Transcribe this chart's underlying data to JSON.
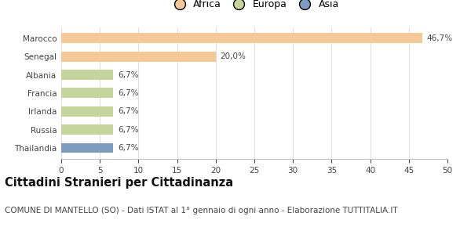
{
  "categories": [
    "Marocco",
    "Senegal",
    "Albania",
    "Francia",
    "Irlanda",
    "Russia",
    "Thailandia"
  ],
  "values": [
    46.7,
    20.0,
    6.7,
    6.7,
    6.7,
    6.7,
    6.7
  ],
  "labels": [
    "46,7%",
    "20,0%",
    "6,7%",
    "6,7%",
    "6,7%",
    "6,7%",
    "6,7%"
  ],
  "colors": [
    "#F5C897",
    "#F5C897",
    "#C5D49A",
    "#C5D49A",
    "#C5D49A",
    "#C5D49A",
    "#7D9CBF"
  ],
  "legend_items": [
    {
      "label": "Africa",
      "color": "#F5C897"
    },
    {
      "label": "Europa",
      "color": "#C5D49A"
    },
    {
      "label": "Asia",
      "color": "#7D9CBF"
    }
  ],
  "xlim": [
    0,
    50
  ],
  "xticks": [
    0,
    5,
    10,
    15,
    20,
    25,
    30,
    35,
    40,
    45,
    50
  ],
  "title": "Cittadini Stranieri per Cittadinanza",
  "subtitle": "COMUNE DI MANTELLO (SO) - Dati ISTAT al 1° gennaio di ogni anno - Elaborazione TUTTITALIA.IT",
  "background_color": "#ffffff",
  "title_fontsize": 10.5,
  "subtitle_fontsize": 7.5,
  "label_fontsize": 7.5,
  "tick_fontsize": 7.5,
  "legend_fontsize": 9
}
